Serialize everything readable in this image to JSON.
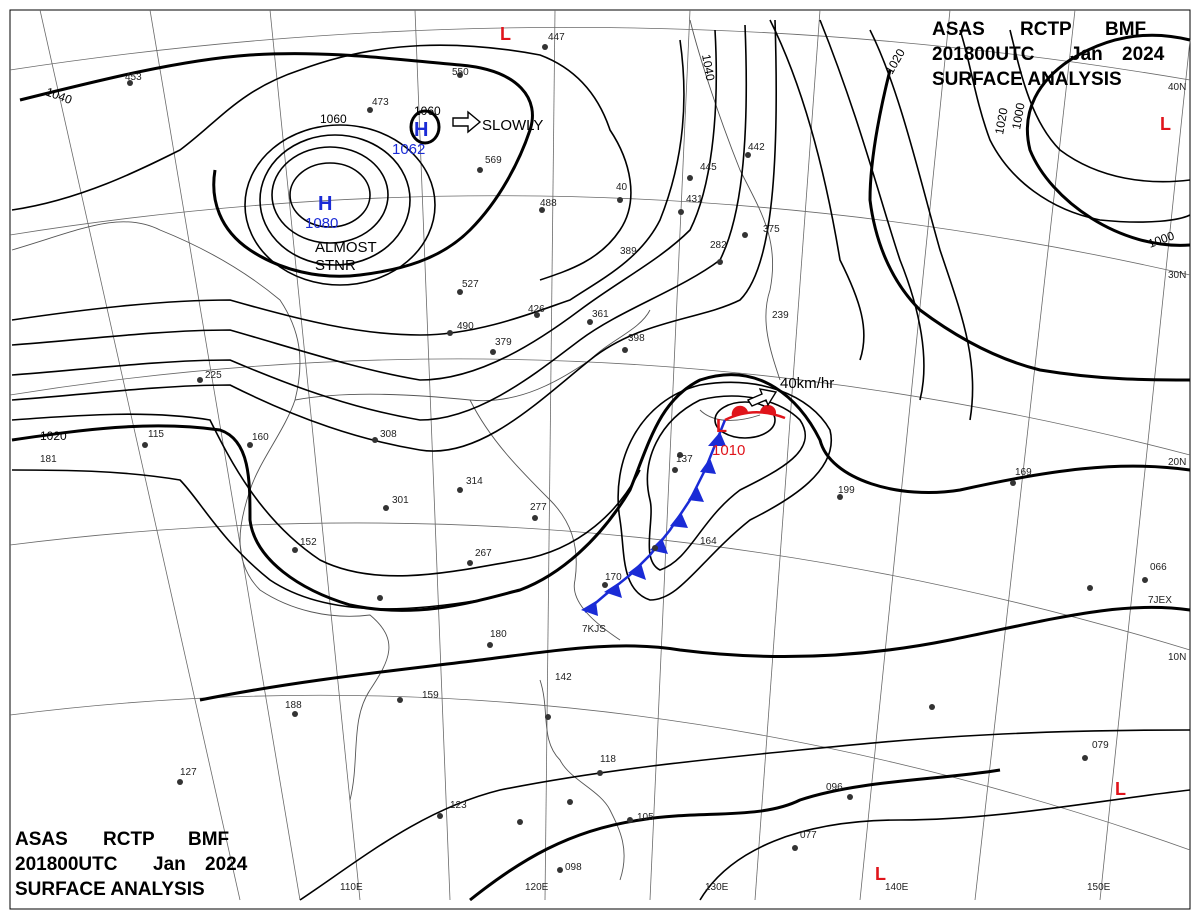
{
  "header_top": {
    "line1": [
      "ASAS",
      "RCTP",
      "BMF"
    ],
    "line2": [
      "201800UTC",
      "Jan",
      "2024"
    ],
    "line3": "SURFACE ANALYSIS"
  },
  "header_bottom": {
    "line1": [
      "ASAS",
      "RCTP",
      "BMF"
    ],
    "line2": [
      "201800UTC",
      "Jan",
      "2024"
    ],
    "line3": "SURFACE ANALYSIS"
  },
  "colors": {
    "high": "#1a2bd6",
    "low": "#e0141b",
    "front": "#1a2bd6",
    "isobar": "#000000",
    "grid": "#555555"
  },
  "lon_labels": [
    "110E",
    "120E",
    "130E",
    "140E",
    "150E"
  ],
  "lat_labels": [
    "40N",
    "30N",
    "20N",
    "10N"
  ],
  "isobar_labels": [
    "1040",
    "1060",
    "1040",
    "1020",
    "1020",
    "1000",
    "1000",
    "1020"
  ],
  "highs": [
    {
      "letter": "H",
      "value": "1080",
      "note": "ALMOST STNR"
    },
    {
      "letter": "H",
      "value": "1062",
      "ring_label": "1060",
      "motion": "SLOWLY"
    }
  ],
  "lows": [
    {
      "letter": "L",
      "value": "1010",
      "motion": "40km/hr"
    },
    {
      "letter": "L"
    },
    {
      "letter": "L"
    },
    {
      "letter": "L"
    },
    {
      "letter": "L"
    }
  ],
  "station_labels": [
    "447",
    "453",
    "550",
    "473",
    "569",
    "488",
    "40",
    "431",
    "445",
    "442",
    "375",
    "389",
    "282",
    "527",
    "426",
    "490",
    "361",
    "398",
    "225",
    "379",
    "115",
    "160",
    "181",
    "308",
    "314",
    "301",
    "277",
    "267",
    "152",
    "159",
    "137",
    "164",
    "199",
    "169",
    "170",
    "180",
    "188",
    "127",
    "123",
    "142",
    "118",
    "105",
    "096",
    "077",
    "079",
    "066",
    "098",
    "239",
    "7KJS",
    "7JEX"
  ]
}
